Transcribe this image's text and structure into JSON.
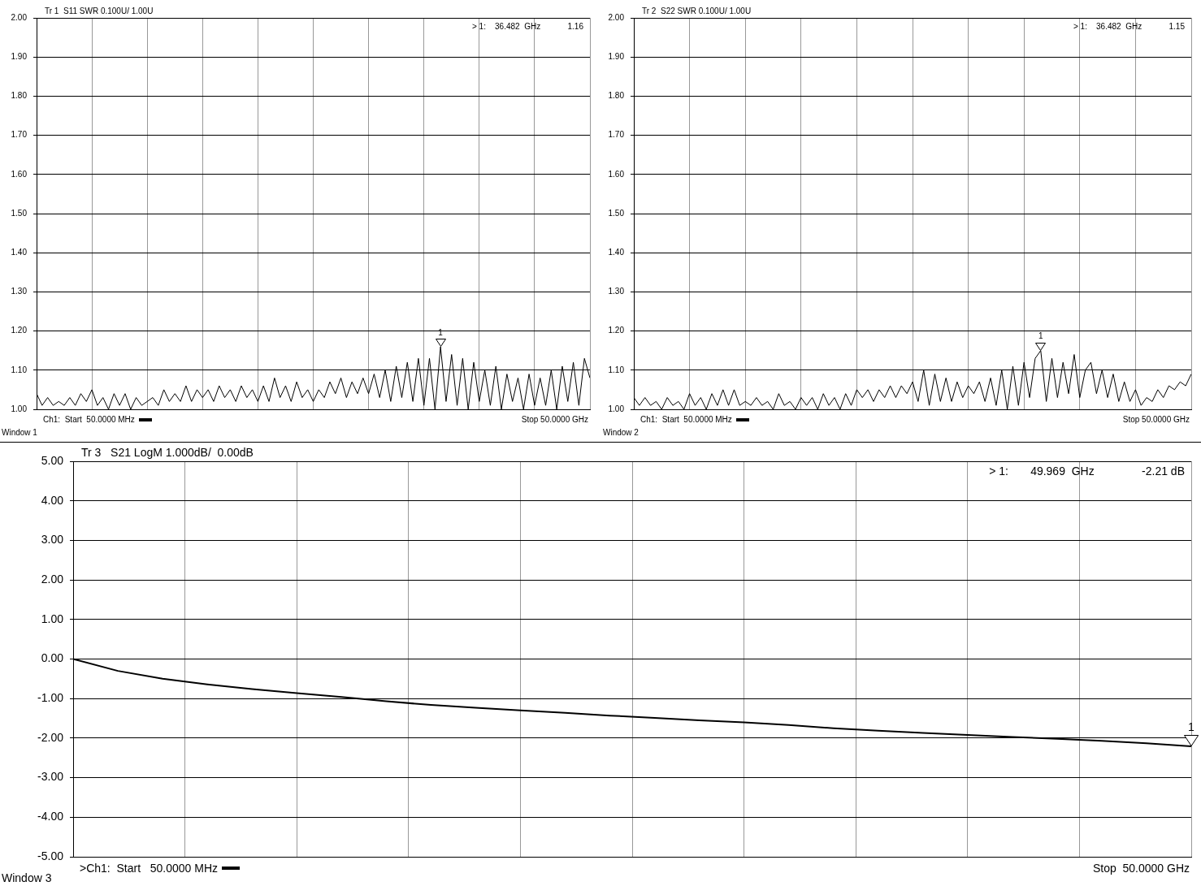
{
  "chart_data": [
    {
      "type": "line",
      "title": "Tr 1  S11 SWR 0.100U/ 1.00U",
      "color": "#000000",
      "grid": true,
      "tick_labels": "y",
      "categories": [
        null,
        null,
        null,
        null,
        null,
        null,
        null,
        null,
        null,
        null,
        null,
        null,
        null,
        null,
        null,
        null,
        null,
        null,
        null,
        null,
        null,
        null,
        null,
        null,
        null,
        null,
        null,
        null,
        null,
        null,
        null,
        null,
        null,
        null,
        null,
        null,
        null,
        null,
        null,
        null,
        null,
        null,
        null,
        null,
        null,
        null,
        null,
        null,
        null,
        null,
        null,
        null,
        null,
        null,
        null,
        null,
        null,
        null,
        null,
        null,
        null,
        null,
        null,
        null,
        null,
        null,
        null,
        null,
        null,
        null,
        null,
        null,
        null,
        null,
        null,
        null,
        null,
        null,
        null,
        null,
        null,
        null,
        null,
        null,
        null,
        null,
        null,
        null,
        null,
        null,
        null,
        null,
        null,
        null,
        null,
        null,
        null,
        null,
        null,
        null,
        null
      ],
      "values": [
        1.04,
        1.01,
        1.03,
        1.01,
        1.02,
        1.01,
        1.03,
        1.01,
        1.04,
        1.02,
        1.05,
        1.01,
        1.03,
        1.0,
        1.04,
        1.01,
        1.04,
        1.0,
        1.03,
        1.01,
        1.02,
        1.03,
        1.01,
        1.05,
        1.02,
        1.04,
        1.02,
        1.06,
        1.02,
        1.05,
        1.03,
        1.05,
        1.02,
        1.06,
        1.03,
        1.05,
        1.02,
        1.06,
        1.03,
        1.05,
        1.02,
        1.06,
        1.02,
        1.08,
        1.03,
        1.06,
        1.02,
        1.07,
        1.03,
        1.05,
        1.02,
        1.05,
        1.03,
        1.07,
        1.04,
        1.08,
        1.03,
        1.07,
        1.04,
        1.08,
        1.04,
        1.09,
        1.03,
        1.1,
        1.02,
        1.11,
        1.03,
        1.12,
        1.02,
        1.13,
        1.01,
        1.13,
        1.0,
        1.16,
        1.02,
        1.14,
        1.01,
        1.13,
        1.0,
        1.12,
        1.02,
        1.1,
        1.01,
        1.11,
        1.0,
        1.09,
        1.02,
        1.08,
        1.0,
        1.09,
        1.01,
        1.08,
        1.01,
        1.1,
        1.0,
        1.11,
        1.02,
        1.12,
        1.01,
        1.13,
        1.08
      ],
      "ylim": [
        1,
        2
      ],
      "yticks": [
        {
          "value": 1,
          "label": "1.00"
        },
        {
          "value": 1.1,
          "label": "1.10"
        },
        {
          "value": 1.2,
          "label": "1.20"
        },
        {
          "value": 1.3,
          "label": "1.30"
        },
        {
          "value": 1.4,
          "label": "1.40"
        },
        {
          "value": 1.5,
          "label": "1.50"
        },
        {
          "value": 1.6,
          "label": "1.60"
        },
        {
          "value": 1.7,
          "label": "1.70"
        },
        {
          "value": 1.8,
          "label": "1.80"
        },
        {
          "value": 1.9,
          "label": "1.90"
        },
        {
          "value": 2,
          "label": "2.00"
        }
      ],
      "annotations": [
        "> 1:    36.482  GHz            1.16",
        "Ch1:  Start  50.0000 MHz",
        "Stop 50.0000 GHz",
        "Window 1",
        {
          "text": "1",
          "y": 1.16
        }
      ]
    },
    {
      "type": "line",
      "title": "Tr 2  S22 SWR 0.100U/ 1.00U",
      "color": "#000000",
      "grid": true,
      "tick_labels": "y",
      "categories": [
        null,
        null,
        null,
        null,
        null,
        null,
        null,
        null,
        null,
        null,
        null,
        null,
        null,
        null,
        null,
        null,
        null,
        null,
        null,
        null,
        null,
        null,
        null,
        null,
        null,
        null,
        null,
        null,
        null,
        null,
        null,
        null,
        null,
        null,
        null,
        null,
        null,
        null,
        null,
        null,
        null,
        null,
        null,
        null,
        null,
        null,
        null,
        null,
        null,
        null,
        null,
        null,
        null,
        null,
        null,
        null,
        null,
        null,
        null,
        null,
        null,
        null,
        null,
        null,
        null,
        null,
        null,
        null,
        null,
        null,
        null,
        null,
        null,
        null,
        null,
        null,
        null,
        null,
        null,
        null,
        null,
        null,
        null,
        null,
        null,
        null,
        null,
        null,
        null,
        null,
        null,
        null,
        null,
        null,
        null,
        null,
        null,
        null,
        null,
        null,
        null
      ],
      "values": [
        1.03,
        1.01,
        1.03,
        1.01,
        1.02,
        1.0,
        1.03,
        1.01,
        1.02,
        1.0,
        1.04,
        1.01,
        1.03,
        1.0,
        1.04,
        1.01,
        1.05,
        1.01,
        1.05,
        1.01,
        1.02,
        1.01,
        1.03,
        1.01,
        1.02,
        1.0,
        1.04,
        1.01,
        1.02,
        1.0,
        1.03,
        1.01,
        1.03,
        1.0,
        1.04,
        1.01,
        1.03,
        1.0,
        1.04,
        1.01,
        1.05,
        1.03,
        1.05,
        1.02,
        1.05,
        1.03,
        1.06,
        1.03,
        1.06,
        1.04,
        1.07,
        1.02,
        1.1,
        1.01,
        1.09,
        1.02,
        1.08,
        1.02,
        1.07,
        1.03,
        1.06,
        1.04,
        1.07,
        1.02,
        1.08,
        1.01,
        1.1,
        1.0,
        1.11,
        1.01,
        1.12,
        1.03,
        1.13,
        1.15,
        1.02,
        1.13,
        1.03,
        1.12,
        1.04,
        1.14,
        1.03,
        1.1,
        1.12,
        1.04,
        1.1,
        1.03,
        1.09,
        1.02,
        1.07,
        1.02,
        1.05,
        1.01,
        1.03,
        1.02,
        1.05,
        1.03,
        1.06,
        1.05,
        1.07,
        1.06,
        1.09
      ],
      "ylim": [
        1,
        2
      ],
      "yticks": [
        {
          "value": 1,
          "label": "1.00"
        },
        {
          "value": 1.1,
          "label": "1.10"
        },
        {
          "value": 1.2,
          "label": "1.20"
        },
        {
          "value": 1.3,
          "label": "1.30"
        },
        {
          "value": 1.4,
          "label": "1.40"
        },
        {
          "value": 1.5,
          "label": "1.50"
        },
        {
          "value": 1.6,
          "label": "1.60"
        },
        {
          "value": 1.7,
          "label": "1.70"
        },
        {
          "value": 1.8,
          "label": "1.80"
        },
        {
          "value": 1.9,
          "label": "1.90"
        },
        {
          "value": 2,
          "label": "2.00"
        }
      ],
      "annotations": [
        "> 1:    36.482  GHz            1.15",
        "Ch1:  Start  50.0000 MHz",
        "Stop 50.0000 GHz",
        "Window 2",
        {
          "text": "1",
          "y": 1.15
        }
      ]
    },
    {
      "type": "line",
      "title": "Tr 3   S21 LogM 1.000dB/  0.00dB",
      "color": "#000000",
      "grid": true,
      "tick_labels": "y",
      "categories": [
        null,
        null,
        null,
        null,
        null,
        null,
        null,
        null,
        null,
        null,
        null,
        null,
        null,
        null,
        null,
        null,
        null,
        null,
        null,
        null,
        null,
        null,
        null,
        null,
        null,
        null
      ],
      "values": [
        0.0,
        -0.3,
        -0.5,
        -0.64,
        -0.76,
        -0.86,
        -0.96,
        -1.07,
        -1.16,
        -1.23,
        -1.3,
        -1.36,
        -1.43,
        -1.49,
        -1.55,
        -1.6,
        -1.67,
        -1.75,
        -1.81,
        -1.87,
        -1.92,
        -1.97,
        -2.02,
        -2.07,
        -2.13,
        -2.21
      ],
      "ylim": [
        -5,
        5
      ],
      "yticks": [
        {
          "value": -5,
          "label": "-5.00"
        },
        {
          "value": -4,
          "label": "-4.00"
        },
        {
          "value": -3,
          "label": "-3.00"
        },
        {
          "value": -2,
          "label": "-2.00"
        },
        {
          "value": -1,
          "label": "-1.00"
        },
        {
          "value": 0,
          "label": "0.00"
        },
        {
          "value": 1,
          "label": "1.00"
        },
        {
          "value": 2,
          "label": "2.00"
        },
        {
          "value": 3,
          "label": "3.00"
        },
        {
          "value": 4,
          "label": "4.00"
        },
        {
          "value": 5,
          "label": "5.00"
        }
      ],
      "annotations": [
        "> 1:       49.969  GHz               -2.21 dB",
        ">Ch1:  Start   50.0000 MHz",
        "Stop  50.0000 GHz",
        "Window 3",
        {
          "text": "1",
          "y": -2.21
        }
      ]
    }
  ]
}
